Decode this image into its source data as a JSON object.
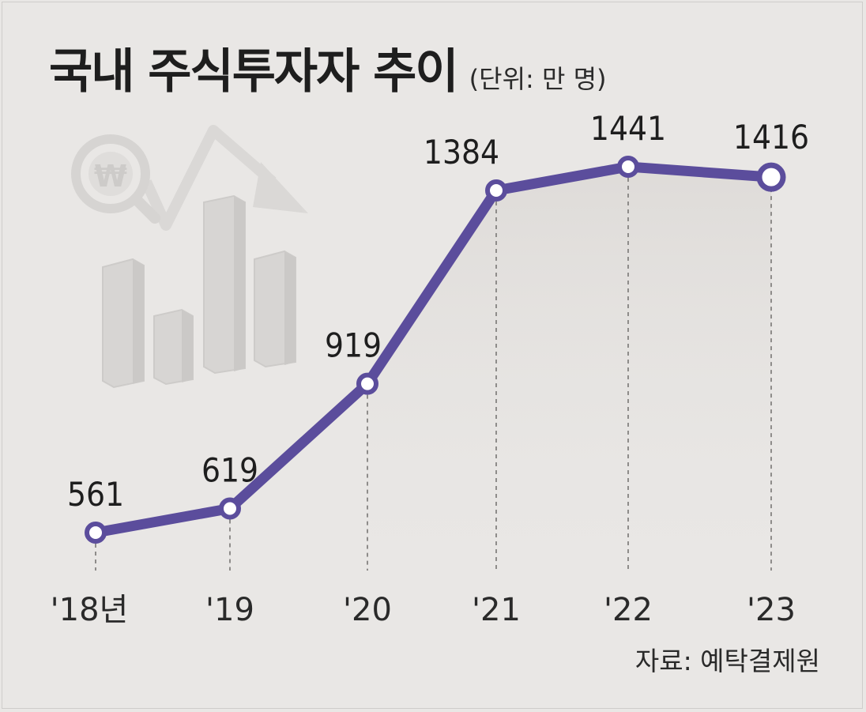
{
  "title": "국내 주식투자자 추이",
  "unit": "(단위: 만 명)",
  "source": "자료: 예탁결제원",
  "colors": {
    "line": "#5b4d9c",
    "marker_fill": "#ffffff",
    "background": "#e9e7e5",
    "text": "#1e1e1e"
  },
  "decoration_icon": "stock-chart-illustration-icon",
  "chart_data": {
    "type": "line",
    "x": [
      "'18년",
      "'19",
      "'20",
      "'21",
      "'22",
      "'23"
    ],
    "values": [
      561,
      619,
      919,
      1384,
      1441,
      1416
    ],
    "value_labels": [
      "561",
      "619",
      "919",
      "1384",
      "1441",
      "1416"
    ],
    "title": "국내 주식투자자 추이",
    "ylabel": "(단위: 만 명)",
    "grid": false,
    "legend": "none"
  }
}
